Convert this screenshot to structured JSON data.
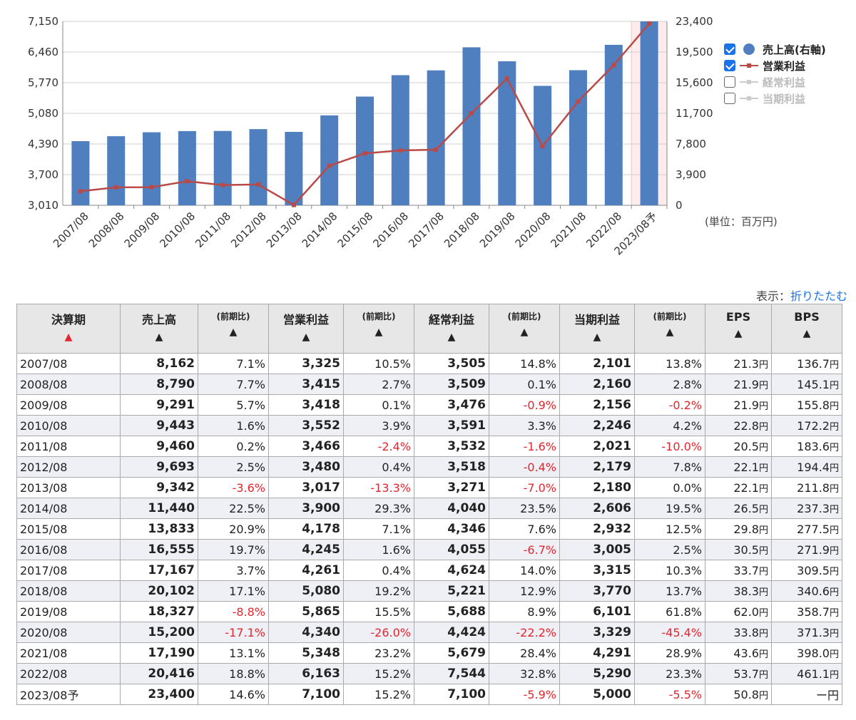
{
  "chart_data": {
    "type": "bar",
    "categories": [
      "2007/08",
      "2008/08",
      "2009/08",
      "2010/08",
      "2011/08",
      "2012/08",
      "2013/08",
      "2014/08",
      "2015/08",
      "2016/08",
      "2017/08",
      "2018/08",
      "2019/08",
      "2020/08",
      "2021/08",
      "2022/08",
      "2023/08予"
    ],
    "series": [
      {
        "name": "売上高(右軸)",
        "type": "bar",
        "axis": "right",
        "color": "#4f7fbf",
        "values": [
          8162,
          8790,
          9291,
          9443,
          9460,
          9693,
          9342,
          11440,
          13833,
          16555,
          17167,
          20102,
          18327,
          15200,
          17190,
          20416,
          23400
        ]
      },
      {
        "name": "営業利益",
        "type": "line",
        "axis": "left",
        "color": "#b94a48",
        "values": [
          3325,
          3415,
          3418,
          3552,
          3466,
          3480,
          3017,
          3900,
          4178,
          4245,
          4261,
          5080,
          5865,
          4340,
          5348,
          6163,
          7100
        ]
      }
    ],
    "left_axis": {
      "ticks": [
        "3,010",
        "3,700",
        "4,390",
        "5,080",
        "5,770",
        "6,460",
        "7,150"
      ],
      "min": 3010,
      "max": 7150
    },
    "right_axis": {
      "ticks": [
        "0",
        "3,900",
        "7,800",
        "11,700",
        "15,600",
        "19,500",
        "23,400"
      ],
      "min": 0,
      "max": 23400
    },
    "forecast_highlight": "2023/08予",
    "grid": true,
    "legend_position": "right"
  },
  "legend": [
    {
      "label": "売上高(右軸)",
      "checked": true,
      "kind": "dot",
      "color": "#4f7fbf"
    },
    {
      "label": "営業利益",
      "checked": true,
      "kind": "line",
      "color": "#b94a48"
    },
    {
      "label": "経常利益",
      "checked": false,
      "kind": "line",
      "color": "#cccccc"
    },
    {
      "label": "当期利益",
      "checked": false,
      "kind": "line",
      "color": "#cccccc"
    }
  ],
  "unit_label": "(単位：百万円)",
  "display_prefix": "表示：",
  "display_link": "折りたたむ",
  "table": {
    "headers": [
      "決算期",
      "売上高",
      "(前期比)",
      "営業利益",
      "(前期比)",
      "経常利益",
      "(前期比)",
      "当期利益",
      "(前期比)",
      "EPS",
      "BPS"
    ],
    "rows": [
      [
        "2007/08",
        "8,162",
        "7.1%",
        "3,325",
        "10.5%",
        "3,505",
        "14.8%",
        "2,101",
        "13.8%",
        "21.3",
        "136.7"
      ],
      [
        "2008/08",
        "8,790",
        "7.7%",
        "3,415",
        "2.7%",
        "3,509",
        "0.1%",
        "2,160",
        "2.8%",
        "21.9",
        "145.1"
      ],
      [
        "2009/08",
        "9,291",
        "5.7%",
        "3,418",
        "0.1%",
        "3,476",
        "-0.9%",
        "2,156",
        "-0.2%",
        "21.9",
        "155.8"
      ],
      [
        "2010/08",
        "9,443",
        "1.6%",
        "3,552",
        "3.9%",
        "3,591",
        "3.3%",
        "2,246",
        "4.2%",
        "22.8",
        "172.2"
      ],
      [
        "2011/08",
        "9,460",
        "0.2%",
        "3,466",
        "-2.4%",
        "3,532",
        "-1.6%",
        "2,021",
        "-10.0%",
        "20.5",
        "183.6"
      ],
      [
        "2012/08",
        "9,693",
        "2.5%",
        "3,480",
        "0.4%",
        "3,518",
        "-0.4%",
        "2,179",
        "7.8%",
        "22.1",
        "194.4"
      ],
      [
        "2013/08",
        "9,342",
        "-3.6%",
        "3,017",
        "-13.3%",
        "3,271",
        "-7.0%",
        "2,180",
        "0.0%",
        "22.1",
        "211.8"
      ],
      [
        "2014/08",
        "11,440",
        "22.5%",
        "3,900",
        "29.3%",
        "4,040",
        "23.5%",
        "2,606",
        "19.5%",
        "26.5",
        "237.3"
      ],
      [
        "2015/08",
        "13,833",
        "20.9%",
        "4,178",
        "7.1%",
        "4,346",
        "7.6%",
        "2,932",
        "12.5%",
        "29.8",
        "277.5"
      ],
      [
        "2016/08",
        "16,555",
        "19.7%",
        "4,245",
        "1.6%",
        "4,055",
        "-6.7%",
        "3,005",
        "2.5%",
        "30.5",
        "271.9"
      ],
      [
        "2017/08",
        "17,167",
        "3.7%",
        "4,261",
        "0.4%",
        "4,624",
        "14.0%",
        "3,315",
        "10.3%",
        "33.7",
        "309.5"
      ],
      [
        "2018/08",
        "20,102",
        "17.1%",
        "5,080",
        "19.2%",
        "5,221",
        "12.9%",
        "3,770",
        "13.7%",
        "38.3",
        "340.6"
      ],
      [
        "2019/08",
        "18,327",
        "-8.8%",
        "5,865",
        "15.5%",
        "5,688",
        "8.9%",
        "6,101",
        "61.8%",
        "62.0",
        "358.7"
      ],
      [
        "2020/08",
        "15,200",
        "-17.1%",
        "4,340",
        "-26.0%",
        "4,424",
        "-22.2%",
        "3,329",
        "-45.4%",
        "33.8",
        "371.3"
      ],
      [
        "2021/08",
        "17,190",
        "13.1%",
        "5,348",
        "23.2%",
        "5,679",
        "28.4%",
        "4,291",
        "28.9%",
        "43.6",
        "398.0"
      ],
      [
        "2022/08",
        "20,416",
        "18.8%",
        "6,163",
        "15.2%",
        "7,544",
        "32.8%",
        "5,290",
        "23.3%",
        "53.7",
        "461.1"
      ],
      [
        "2023/08予",
        "23,400",
        "14.6%",
        "7,100",
        "15.2%",
        "7,100",
        "-5.9%",
        "5,000",
        "-5.5%",
        "50.8",
        "ー"
      ]
    ],
    "yen": "円",
    "sort_marker": "▲"
  }
}
